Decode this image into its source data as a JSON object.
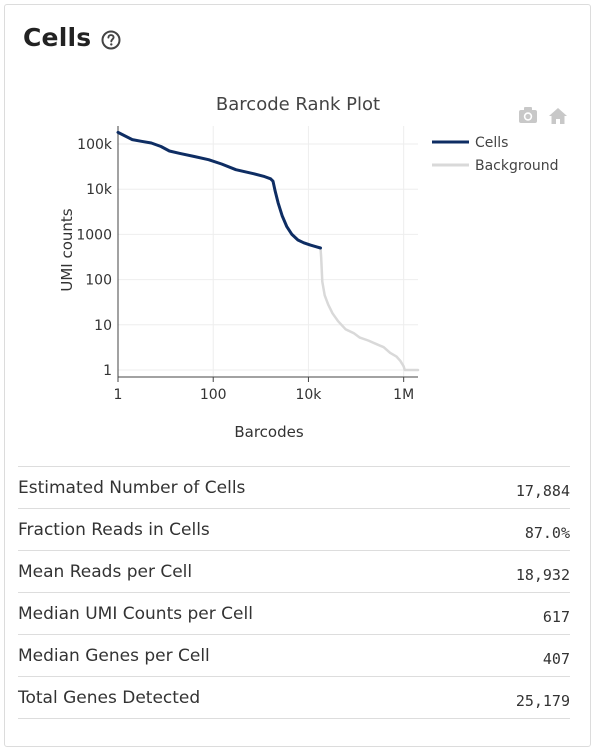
{
  "card": {
    "title": "Cells",
    "help_icon": "question-circle-icon"
  },
  "plot_toolbar": {
    "icons": [
      "camera-icon",
      "home-icon"
    ]
  },
  "chart_data": {
    "type": "line",
    "title": "Barcode Rank Plot",
    "xlabel": "Barcodes",
    "ylabel": "UMI counts",
    "xscale": "log",
    "yscale": "log",
    "xlim": [
      1,
      2000000
    ],
    "ylim": [
      0.7,
      250000
    ],
    "grid": true,
    "legend_position": "right",
    "xticks": [
      {
        "value": 1,
        "label": "1"
      },
      {
        "value": 100,
        "label": "100"
      },
      {
        "value": 10000,
        "label": "10k"
      },
      {
        "value": 1000000,
        "label": "1M"
      }
    ],
    "yticks": [
      {
        "value": 1,
        "label": "1"
      },
      {
        "value": 10,
        "label": "10"
      },
      {
        "value": 100,
        "label": "100"
      },
      {
        "value": 1000,
        "label": "1000"
      },
      {
        "value": 10000,
        "label": "10k"
      },
      {
        "value": 100000,
        "label": "100k"
      }
    ],
    "series": [
      {
        "name": "Cells",
        "color": "#0e2d63",
        "points": [
          [
            1,
            180000
          ],
          [
            2,
            125000
          ],
          [
            3,
            115000
          ],
          [
            5,
            105000
          ],
          [
            8,
            88000
          ],
          [
            12,
            70000
          ],
          [
            20,
            62000
          ],
          [
            40,
            53000
          ],
          [
            80,
            45000
          ],
          [
            150,
            36000
          ],
          [
            300,
            27000
          ],
          [
            700,
            22000
          ],
          [
            1200,
            19000
          ],
          [
            1600,
            17000
          ],
          [
            1800,
            15000
          ],
          [
            2000,
            9000
          ],
          [
            2300,
            5000
          ],
          [
            2800,
            2600
          ],
          [
            3500,
            1500
          ],
          [
            4500,
            1000
          ],
          [
            6000,
            750
          ],
          [
            8000,
            650
          ],
          [
            11000,
            580
          ],
          [
            15000,
            530
          ],
          [
            17884,
            500
          ]
        ]
      },
      {
        "name": "Background",
        "color": "#d9d9d9",
        "points": [
          [
            17884,
            500
          ],
          [
            18500,
            300
          ],
          [
            19500,
            90
          ],
          [
            22000,
            45
          ],
          [
            26000,
            28
          ],
          [
            32000,
            18
          ],
          [
            42000,
            12
          ],
          [
            60000,
            8
          ],
          [
            90000,
            6.5
          ],
          [
            120000,
            5.2
          ],
          [
            180000,
            4.5
          ],
          [
            260000,
            3.8
          ],
          [
            380000,
            3.2
          ],
          [
            520000,
            2.4
          ],
          [
            700000,
            2
          ],
          [
            850000,
            1.6
          ],
          [
            1000000,
            1.2
          ],
          [
            1050000,
            1
          ],
          [
            2000000,
            1
          ]
        ]
      }
    ]
  },
  "metrics": [
    {
      "label": "Estimated Number of Cells",
      "value": "17,884"
    },
    {
      "label": "Fraction Reads in Cells",
      "value": "87.0%"
    },
    {
      "label": "Mean Reads per Cell",
      "value": "18,932"
    },
    {
      "label": "Median UMI Counts per Cell",
      "value": "617"
    },
    {
      "label": "Median Genes per Cell",
      "value": "407"
    },
    {
      "label": "Total Genes Detected",
      "value": "25,179"
    }
  ]
}
